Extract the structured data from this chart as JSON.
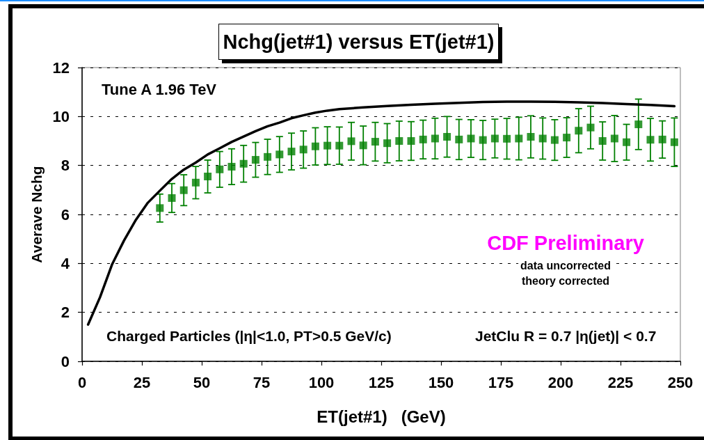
{
  "chart_data": {
    "type": "scatter",
    "title": "Nchg(jet#1) versus ET(jet#1)",
    "xlabel": "ET(jet#1)   (GeV)",
    "ylabel": "Averave Nchg",
    "annotations": [
      "Tune A 1.96 TeV",
      "CDF Preliminary",
      "data uncorrected",
      "theory corrected",
      "Charged Particles (|η|<1.0, PT>0.5 GeV/c)",
      "JetClu R = 0.7 |η(jet)| < 0.7"
    ],
    "xlim": [
      0,
      250
    ],
    "xticks": [
      0,
      25,
      50,
      75,
      100,
      125,
      150,
      175,
      200,
      225,
      250
    ],
    "ylim": [
      0,
      12
    ],
    "yticks": [
      0,
      2,
      4,
      6,
      8,
      10,
      12
    ],
    "grid": "y",
    "series": [
      {
        "color": "#008000",
        "marker": "square",
        "x": [
          32.5,
          37.5,
          42.5,
          47.5,
          52.5,
          57.5,
          62.5,
          67.5,
          72.5,
          77.5,
          82.5,
          87.5,
          92.5,
          97.5,
          102.5,
          107.5,
          112.5,
          117.5,
          122.5,
          127.5,
          132.5,
          137.5,
          142.5,
          147.5,
          152.5,
          157.5,
          162.5,
          167.5,
          172.5,
          177.5,
          182.5,
          187.5,
          192.5,
          197.5,
          202.5,
          207.5,
          212.5,
          217.5,
          222.5,
          227.5,
          232.5,
          237.5,
          242.5,
          247.5
        ],
        "values": [
          6.26,
          6.67,
          6.99,
          7.3,
          7.55,
          7.84,
          7.95,
          8.07,
          8.23,
          8.35,
          8.45,
          8.57,
          8.65,
          8.78,
          8.81,
          8.81,
          8.99,
          8.82,
          8.97,
          8.91,
          9.0,
          9.0,
          9.06,
          9.1,
          9.17,
          9.06,
          9.1,
          9.04,
          9.1,
          9.09,
          9.1,
          9.17,
          9.1,
          9.04,
          9.14,
          9.42,
          9.55,
          9.0,
          9.1,
          8.95,
          9.68,
          9.05,
          9.06,
          8.95
        ],
        "errors": [
          0.57,
          0.59,
          0.63,
          0.66,
          0.67,
          0.73,
          0.73,
          0.75,
          0.71,
          0.72,
          0.73,
          0.75,
          0.76,
          0.76,
          0.77,
          0.76,
          0.77,
          0.79,
          0.79,
          0.8,
          0.81,
          0.79,
          0.79,
          0.83,
          0.83,
          0.82,
          0.77,
          0.8,
          0.79,
          0.83,
          0.87,
          0.86,
          0.84,
          0.83,
          0.81,
          0.9,
          0.87,
          0.78,
          0.94,
          0.73,
          1.03,
          0.87,
          0.76,
          0.99
        ]
      },
      {
        "type": "line",
        "color": "#000000",
        "marker": "none",
        "x": [
          2.5,
          7.5,
          12.5,
          17.5,
          22.5,
          27.5,
          32.5,
          37.5,
          42.5,
          47.5,
          52.5,
          57.5,
          62.5,
          67.5,
          72.5,
          77.5,
          82.5,
          87.5,
          92.5,
          97.5,
          102.5,
          107.5,
          117.5,
          127.5,
          137.5,
          147.5,
          157.5,
          167.5,
          177.5,
          187.5,
          197.5,
          207.5,
          217.5,
          227.5,
          237.5,
          247.5
        ],
        "values": [
          1.5,
          2.62,
          3.95,
          4.93,
          5.78,
          6.48,
          6.97,
          7.45,
          7.83,
          8.12,
          8.45,
          8.7,
          8.96,
          9.18,
          9.4,
          9.6,
          9.75,
          9.93,
          10.05,
          10.16,
          10.24,
          10.3,
          10.37,
          10.43,
          10.48,
          10.52,
          10.56,
          10.59,
          10.61,
          10.61,
          10.6,
          10.58,
          10.55,
          10.51,
          10.47,
          10.42
        ]
      }
    ]
  }
}
